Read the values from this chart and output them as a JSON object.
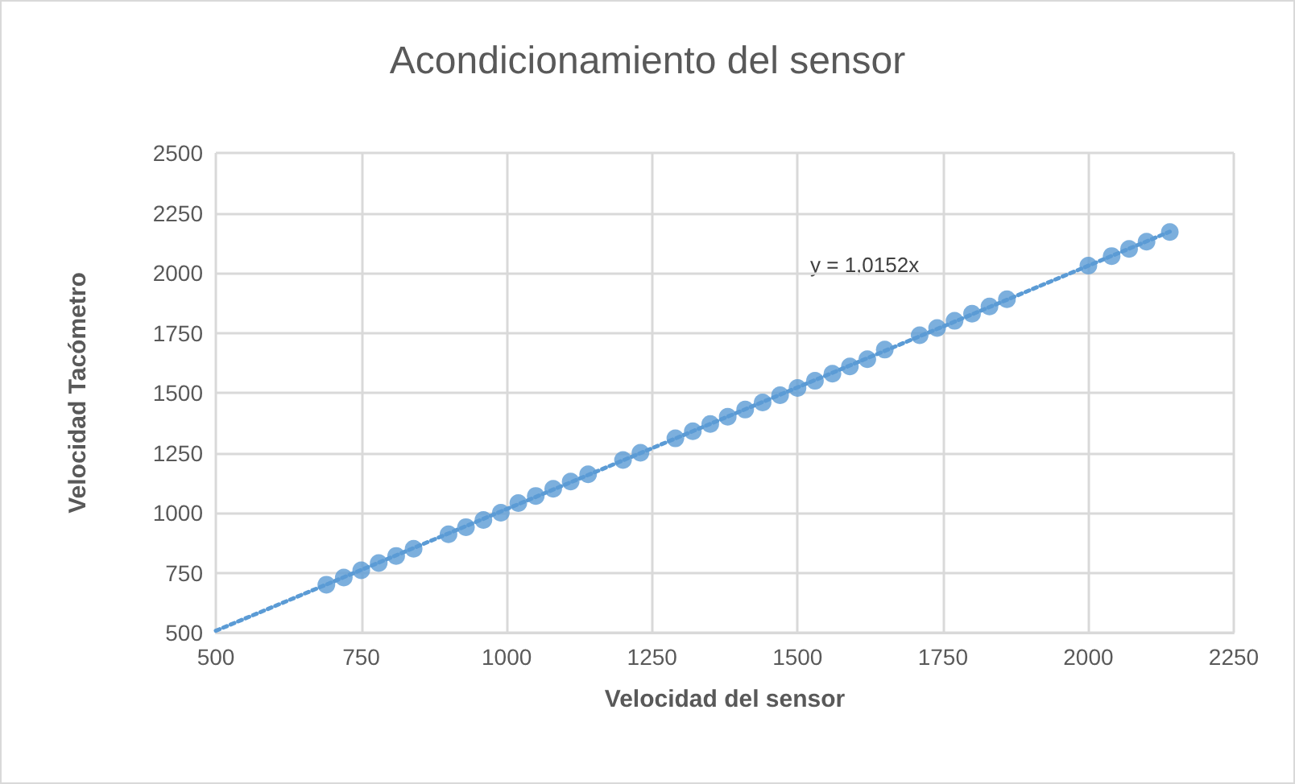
{
  "chart_data": {
    "type": "scatter",
    "title": "Acondicionamiento del sensor",
    "xlabel": "Velocidad del sensor",
    "ylabel": "Velocidad Tacómetro",
    "series": [
      {
        "color": "#5b9bd5",
        "marker": "circle",
        "x": [
          690,
          720,
          750,
          780,
          810,
          840,
          900,
          930,
          960,
          990,
          1020,
          1050,
          1080,
          1110,
          1140,
          1200,
          1230,
          1290,
          1320,
          1350,
          1380,
          1410,
          1440,
          1470,
          1500,
          1530,
          1560,
          1590,
          1620,
          1650,
          1710,
          1740,
          1770,
          1800,
          1830,
          1860,
          2000,
          2040,
          2070,
          2100,
          2140
        ],
        "values": [
          700,
          730,
          760,
          790,
          820,
          850,
          910,
          940,
          970,
          1000,
          1040,
          1070,
          1100,
          1130,
          1160,
          1220,
          1250,
          1310,
          1340,
          1370,
          1400,
          1430,
          1460,
          1490,
          1520,
          1550,
          1580,
          1610,
          1640,
          1680,
          1740,
          1770,
          1800,
          1830,
          1860,
          1890,
          2030,
          2070,
          2100,
          2130,
          2170
        ]
      },
      {
        "type": "line",
        "color": "#5b9bd5",
        "marker": "none",
        "line_style": "dotted",
        "x": [
          500,
          2140
        ],
        "values": [
          508,
          2172
        ]
      }
    ],
    "annotations": [
      "y = 1,0152x"
    ],
    "xlim": [
      500,
      2250
    ],
    "xticks": [
      500,
      750,
      1000,
      1250,
      1500,
      1750,
      2000,
      2250
    ],
    "ylim": [
      500,
      2500
    ],
    "yticks": [
      500,
      750,
      1000,
      1250,
      1500,
      1750,
      2000,
      2250,
      2500
    ],
    "grid": true
  }
}
